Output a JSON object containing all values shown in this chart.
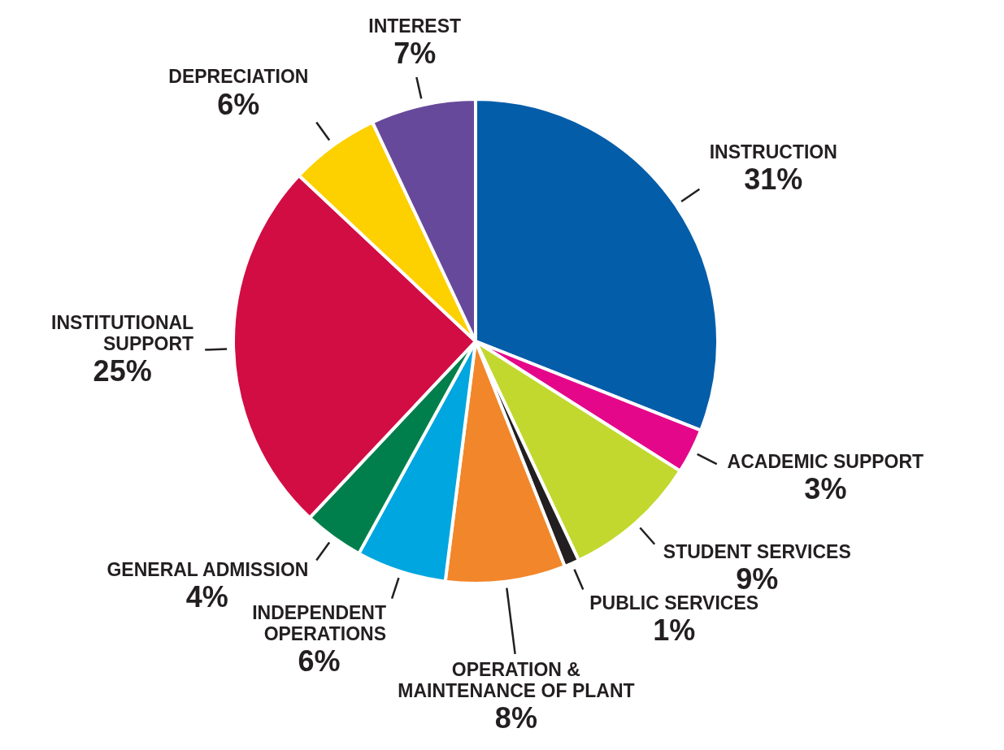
{
  "chart_data": {
    "type": "pie",
    "categories": [
      "INSTRUCTION",
      "ACADEMIC SUPPORT",
      "STUDENT SERVICES",
      "PUBLIC SERVICES",
      "OPERATION & MAINTENANCE OF PLANT",
      "INDEPENDENT OPERATIONS",
      "GENERAL ADMISSION",
      "INSTITUTIONAL SUPPORT",
      "DEPRECIATION",
      "INTEREST"
    ],
    "values": [
      31,
      3,
      9,
      1,
      8,
      6,
      4,
      25,
      6,
      7
    ],
    "value_labels": [
      "31%",
      "3%",
      "9%",
      "1%",
      "8%",
      "6%",
      "4%",
      "25%",
      "6%",
      "7%"
    ],
    "colors": [
      "#045da9",
      "#e5078a",
      "#c2d82e",
      "#231f20",
      "#f2862a",
      "#00a6e0",
      "#007f4d",
      "#d20d43",
      "#fdd000",
      "#67499b"
    ],
    "legend": false
  }
}
